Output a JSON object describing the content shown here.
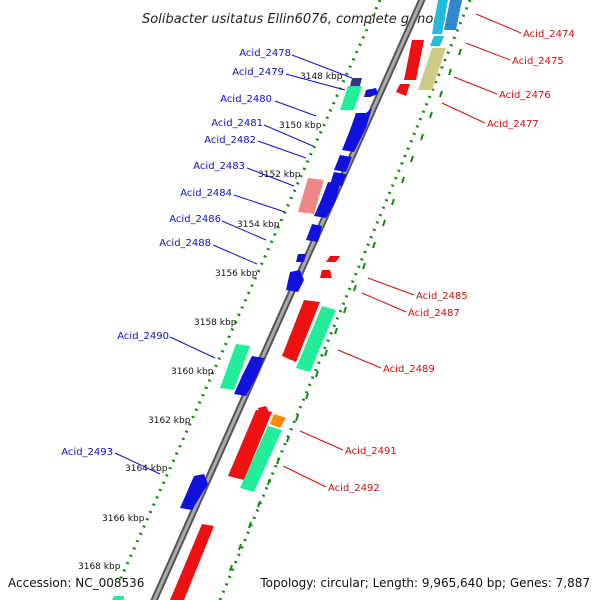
{
  "title": "Solibacter usitatus Ellin6076, complete genome",
  "footer": {
    "accession": "Accession: NC_008536",
    "topology": "Topology: circular; Length: 9,965,640 bp; Genes: 7,887"
  },
  "colors": {
    "blue_label": "#1010cc",
    "red_label": "#cc1010",
    "backbone": "#888888",
    "tick_green": "#118811",
    "gene_red": "#ee1111",
    "gene_blue": "#1111dd",
    "gene_green": "#22ee99",
    "gene_pink": "#ee8888",
    "gene_olive": "#cccc88",
    "gene_navy": "#333388",
    "gene_orange": "#ff8800",
    "gene_cyan": "#22bbdd"
  },
  "kbp_ticks": [
    "3148 kbp",
    "3150 kbp",
    "3152 kbp",
    "3154 kbp",
    "3156 kbp",
    "3158 kbp",
    "3160 kbp",
    "3162 kbp",
    "3164 kbp",
    "3166 kbp",
    "3168 kbp"
  ],
  "left_labels": [
    "Acid_2478",
    "Acid_2479",
    "Acid_2480",
    "Acid_2481",
    "Acid_2482",
    "Acid_2483",
    "Acid_2484",
    "Acid_2486",
    "Acid_2488",
    "Acid_2490",
    "Acid_2493"
  ],
  "right_labels": [
    "Acid_2474",
    "Acid_2475",
    "Acid_2476",
    "Acid_2477",
    "Acid_2485",
    "Acid_2487",
    "Acid_2489",
    "Acid_2491",
    "Acid_2492"
  ]
}
